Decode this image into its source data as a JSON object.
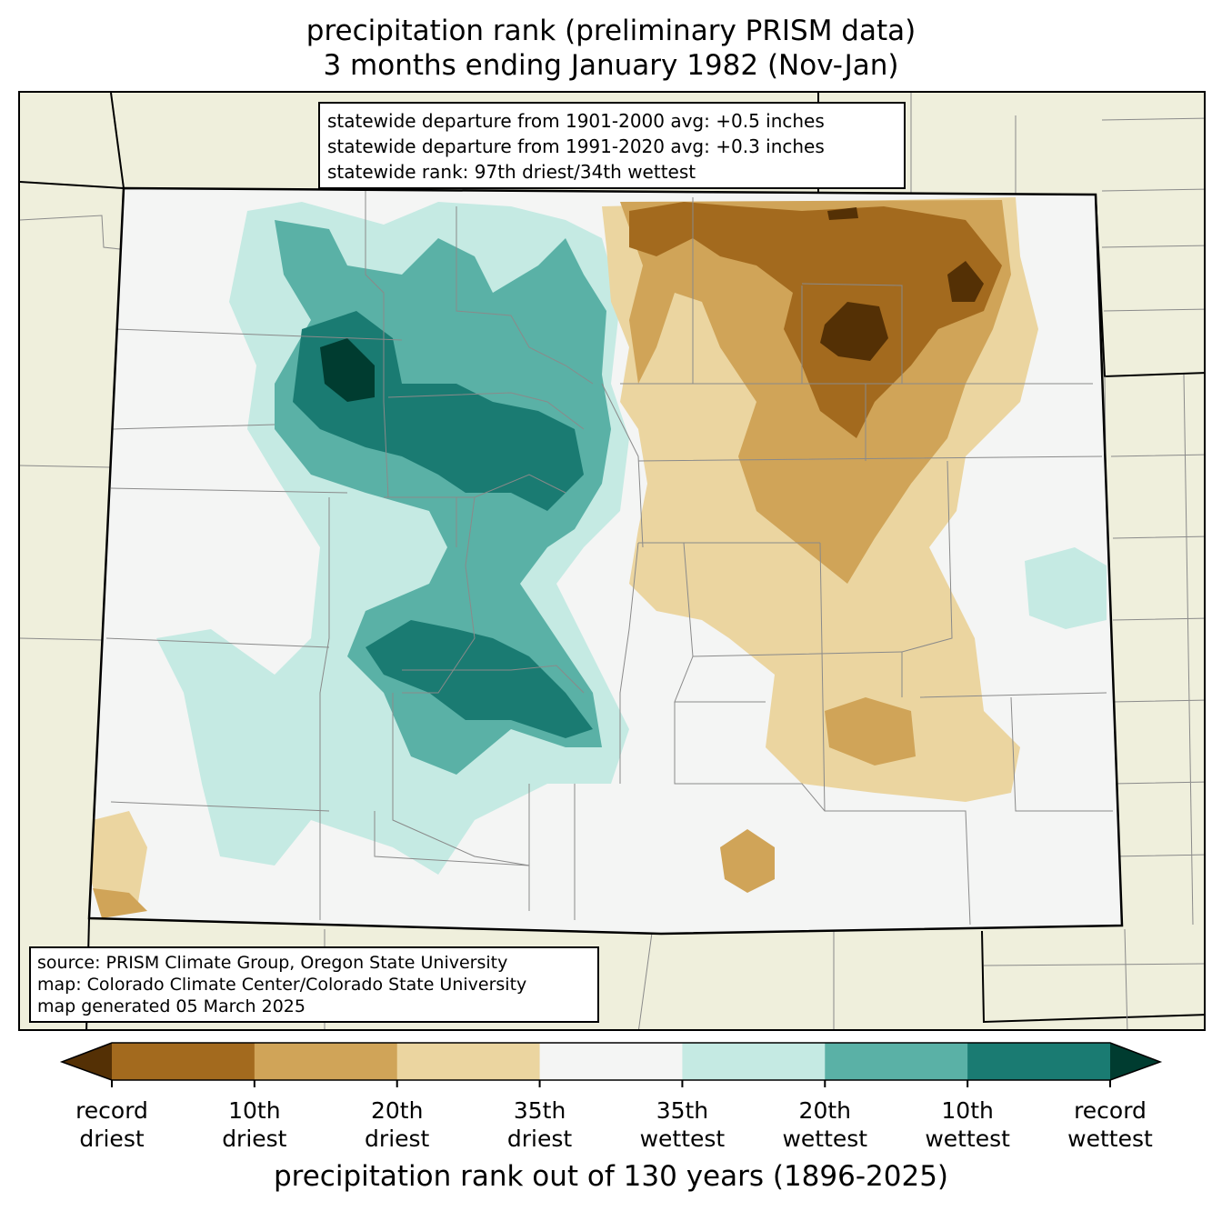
{
  "title": {
    "line1": "precipitation rank (preliminary PRISM data)",
    "line2": "3 months ending January 1982 (Nov-Jan)"
  },
  "stats": {
    "departure_1901_2000": "statewide departure from 1901-2000 avg: +0.5 inches",
    "departure_1991_2020": "statewide departure from 1991-2020 avg: +0.3 inches",
    "rank": "statewide rank: 97th driest/34th wettest"
  },
  "source": {
    "line1": "source: PRISM Climate Group, Oregon State University",
    "line2": "map: Colorado Climate Center/Colorado State University",
    "line3": "map generated 05 March 2025"
  },
  "colorbar": {
    "colors": [
      "#543005",
      "#a36a1e",
      "#d0a458",
      "#ebd5a0",
      "#f4f5f4",
      "#c5eae3",
      "#5ab1a6",
      "#1a7b72",
      "#003c30"
    ],
    "ticks": [
      {
        "l1": "record",
        "l2": "driest"
      },
      {
        "l1": "10th",
        "l2": "driest"
      },
      {
        "l1": "20th",
        "l2": "driest"
      },
      {
        "l1": "35th",
        "l2": "driest"
      },
      {
        "l1": "35th",
        "l2": "wettest"
      },
      {
        "l1": "20th",
        "l2": "wettest"
      },
      {
        "l1": "10th",
        "l2": "wettest"
      },
      {
        "l1": "record",
        "l2": "wettest"
      }
    ],
    "axis_label": "precipitation rank out of 130 years (1896-2025)"
  },
  "map_colors": {
    "outside": "#efefdc",
    "state_base": "#f4f5f4"
  }
}
